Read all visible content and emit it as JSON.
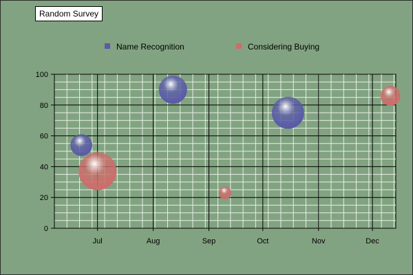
{
  "chart_data": {
    "type": "bubble",
    "title": "Random Survey",
    "xlabel": "",
    "ylabel": "",
    "x_ticks": [
      "Jul",
      "Aug",
      "Sep",
      "Oct",
      "Nov",
      "Dec"
    ],
    "x_range": [
      "2024-06-07",
      "2024-12-14"
    ],
    "ylim": [
      0,
      100
    ],
    "y_ticks": [
      0,
      20,
      40,
      60,
      80,
      100
    ],
    "grid": true,
    "legend_position": "top",
    "series": [
      {
        "name": "Name Recognition",
        "color": "#5a5aa8",
        "points": [
          {
            "x": "2024-06-22",
            "y": 54,
            "size": 6
          },
          {
            "x": "2024-08-12",
            "y": 90,
            "size": 10
          },
          {
            "x": "2024-10-15",
            "y": 75,
            "size": 13
          }
        ]
      },
      {
        "name": "Considering Buying",
        "color": "#cd6d6b",
        "points": [
          {
            "x": "2024-07-01",
            "y": 37,
            "size": 18
          },
          {
            "x": "2024-09-10",
            "y": 23,
            "size": 2
          },
          {
            "x": "2024-12-11",
            "y": 86,
            "size": 5
          }
        ]
      }
    ]
  }
}
